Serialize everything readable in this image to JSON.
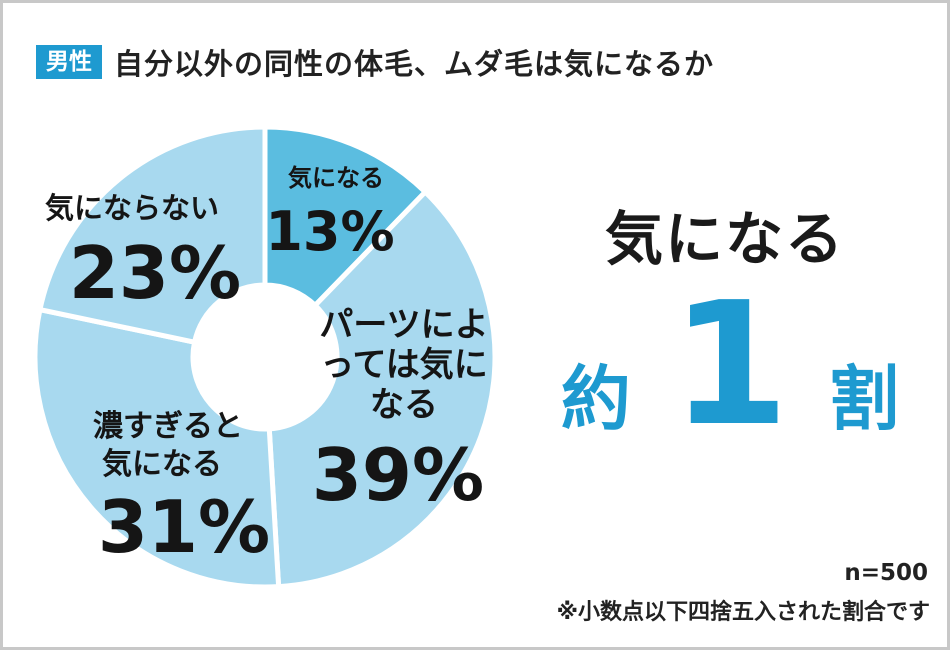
{
  "header": {
    "badge": "男性",
    "title": "自分以外の同性の体毛、ムダ毛は気になるか"
  },
  "chart_data": {
    "type": "pie",
    "title": "自分以外の同性の体毛、ムダ毛は気になるか",
    "slices": [
      {
        "label": "気になる",
        "value": 13,
        "value_label": "13%",
        "color": "#5bbde0"
      },
      {
        "label": "パーツによっては気になる",
        "value": 39,
        "value_label": "39%",
        "color": "#a8d9ef"
      },
      {
        "label": "濃すぎると気になる",
        "value": 31,
        "value_label": "31%",
        "color": "#a8d9ef"
      },
      {
        "label": "気にならない",
        "value": 23,
        "value_label": "23%",
        "color": "#a8d9ef"
      }
    ]
  },
  "summary": {
    "line1": "気になる",
    "prefix": "約",
    "number": "1",
    "suffix": "割"
  },
  "footer": {
    "sample": "n=500",
    "note": "※小数点以下四捨五入された割合です"
  }
}
